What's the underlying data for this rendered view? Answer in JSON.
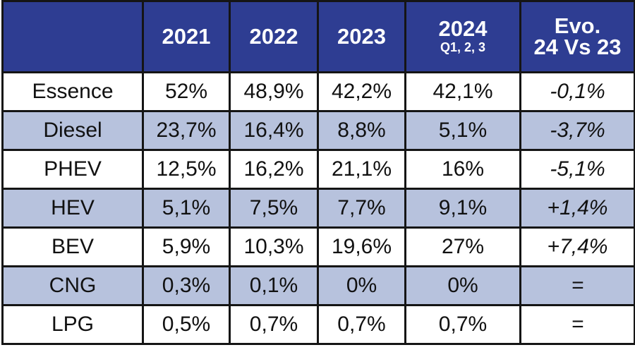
{
  "chart_data": {
    "type": "table",
    "columns": [
      {
        "label": "2021",
        "sub": ""
      },
      {
        "label": "2022",
        "sub": ""
      },
      {
        "label": "2023",
        "sub": ""
      },
      {
        "label": "2024",
        "sub": "Q1, 2, 3"
      },
      {
        "label": "Evo.",
        "sub": "24 Vs 23"
      }
    ],
    "rows": [
      {
        "label": "Essence",
        "cells": [
          "52%",
          "48,9%",
          "42,2%",
          "42,1%",
          "-0,1%"
        ]
      },
      {
        "label": "Diesel",
        "cells": [
          "23,7%",
          "16,4%",
          "8,8%",
          "5,1%",
          "-3,7%"
        ]
      },
      {
        "label": "PHEV",
        "cells": [
          "12,5%",
          "16,2%",
          "21,1%",
          "16%",
          "-5,1%"
        ]
      },
      {
        "label": "HEV",
        "cells": [
          "5,1%",
          "7,5%",
          "7,7%",
          "9,1%",
          "+1,4%"
        ]
      },
      {
        "label": "BEV",
        "cells": [
          "5,9%",
          "10,3%",
          "19,6%",
          "27%",
          "+7,4%"
        ]
      },
      {
        "label": "CNG",
        "cells": [
          "0,3%",
          "0,1%",
          "0%",
          "0%",
          "="
        ]
      },
      {
        "label": "LPG",
        "cells": [
          "0,5%",
          "0,7%",
          "0,7%",
          "0,7%",
          "="
        ]
      }
    ],
    "colors": {
      "header_bg": "#2e3d92",
      "alt_row_bg": "#b7c2dd",
      "border": "#151515"
    }
  }
}
